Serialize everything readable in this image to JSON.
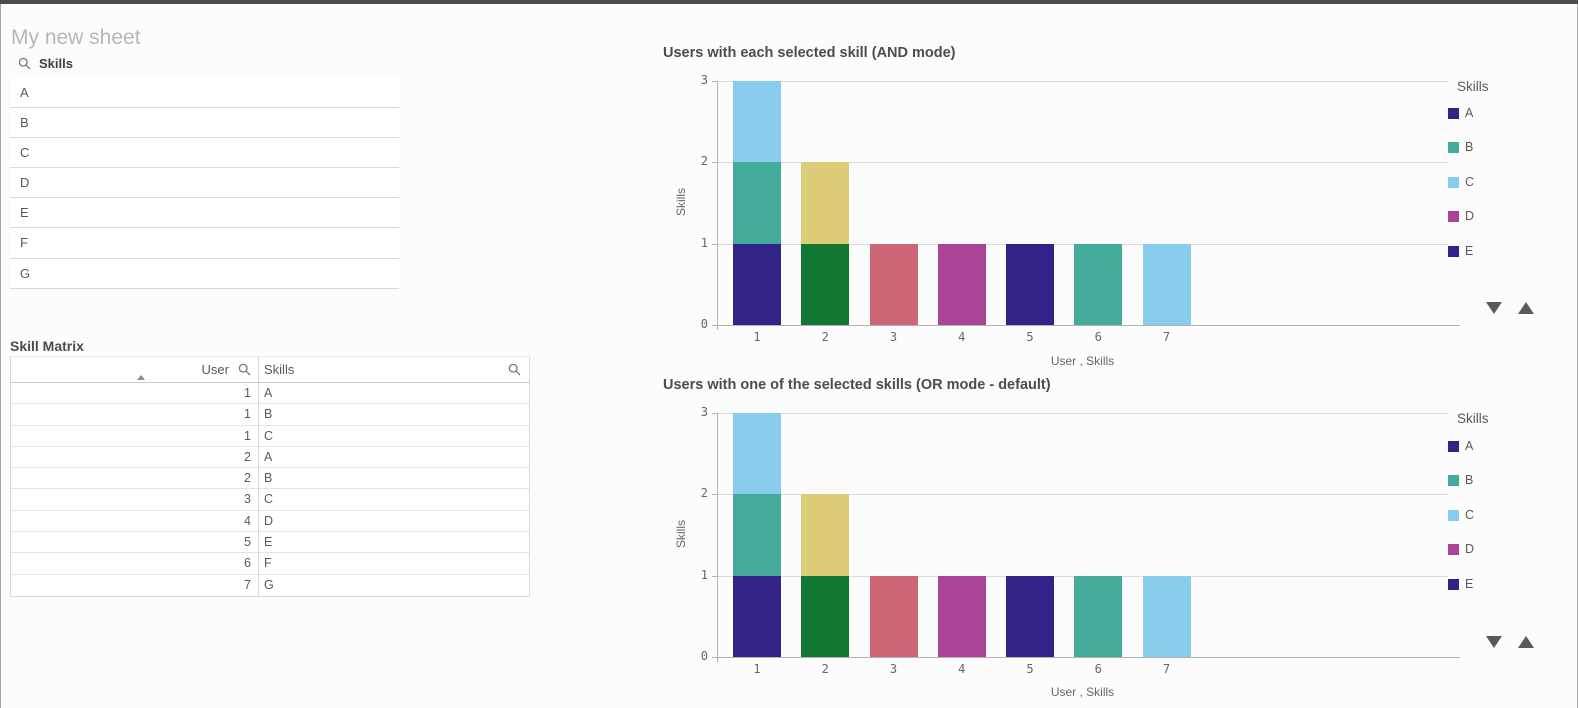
{
  "sheet": {
    "title": "My new sheet"
  },
  "filter_pane": {
    "title": "Skills",
    "items": [
      "A",
      "B",
      "C",
      "D",
      "E",
      "F",
      "G"
    ]
  },
  "skill_matrix": {
    "title": "Skill Matrix",
    "columns": [
      {
        "label": "User",
        "align": "right",
        "sorted": "ascending"
      },
      {
        "label": "Skills",
        "align": "left"
      }
    ],
    "rows": [
      {
        "user": "1",
        "skill": "A"
      },
      {
        "user": "1",
        "skill": "B"
      },
      {
        "user": "1",
        "skill": "C"
      },
      {
        "user": "2",
        "skill": "A"
      },
      {
        "user": "2",
        "skill": "B"
      },
      {
        "user": "3",
        "skill": "C"
      },
      {
        "user": "4",
        "skill": "D"
      },
      {
        "user": "5",
        "skill": "E"
      },
      {
        "user": "6",
        "skill": "F"
      },
      {
        "user": "7",
        "skill": "G"
      }
    ]
  },
  "legend": {
    "title": "Skills",
    "entries": [
      {
        "label": "A",
        "color": "#332288"
      },
      {
        "label": "B",
        "color": "#44AA99"
      },
      {
        "label": "C",
        "color": "#88CCEE"
      },
      {
        "label": "D",
        "color": "#AA4499"
      },
      {
        "label": "E",
        "color": "#332288"
      }
    ]
  },
  "chart_data": [
    {
      "type": "bar",
      "stacked": true,
      "title": "Users with each selected skill (AND mode)",
      "xlabel": "User , Skills",
      "ylabel": "Skills",
      "ylim": [
        0,
        3
      ],
      "yticks": [
        0,
        1,
        2,
        3
      ],
      "grid": true,
      "legend_position": "right",
      "categories": [
        "1",
        "2",
        "3",
        "4",
        "5",
        "6",
        "7"
      ],
      "totals": [
        3,
        2,
        1,
        1,
        1,
        1,
        1
      ],
      "bars": [
        {
          "category": "1",
          "segments": [
            {
              "value": 1,
              "color": "#332288"
            },
            {
              "value": 1,
              "color": "#44AA99"
            },
            {
              "value": 1,
              "color": "#88CCEE"
            }
          ]
        },
        {
          "category": "2",
          "segments": [
            {
              "value": 1,
              "color": "#117733"
            },
            {
              "value": 1,
              "color": "#DDCC77"
            }
          ]
        },
        {
          "category": "3",
          "segments": [
            {
              "value": 1,
              "color": "#CC6677"
            }
          ]
        },
        {
          "category": "4",
          "segments": [
            {
              "value": 1,
              "color": "#AA4499"
            }
          ]
        },
        {
          "category": "5",
          "segments": [
            {
              "value": 1,
              "color": "#332288"
            }
          ]
        },
        {
          "category": "6",
          "segments": [
            {
              "value": 1,
              "color": "#44AA99"
            }
          ]
        },
        {
          "category": "7",
          "segments": [
            {
              "value": 1,
              "color": "#88CCEE"
            }
          ]
        }
      ]
    },
    {
      "type": "bar",
      "stacked": true,
      "title": "Users with one of the selected skills (OR mode - default)",
      "xlabel": "User , Skills",
      "ylabel": "Skills",
      "ylim": [
        0,
        3
      ],
      "yticks": [
        0,
        1,
        2,
        3
      ],
      "grid": true,
      "legend_position": "right",
      "categories": [
        "1",
        "2",
        "3",
        "4",
        "5",
        "6",
        "7"
      ],
      "totals": [
        3,
        2,
        1,
        1,
        1,
        1,
        1
      ],
      "bars": [
        {
          "category": "1",
          "segments": [
            {
              "value": 1,
              "color": "#332288"
            },
            {
              "value": 1,
              "color": "#44AA99"
            },
            {
              "value": 1,
              "color": "#88CCEE"
            }
          ]
        },
        {
          "category": "2",
          "segments": [
            {
              "value": 1,
              "color": "#117733"
            },
            {
              "value": 1,
              "color": "#DDCC77"
            }
          ]
        },
        {
          "category": "3",
          "segments": [
            {
              "value": 1,
              "color": "#CC6677"
            }
          ]
        },
        {
          "category": "4",
          "segments": [
            {
              "value": 1,
              "color": "#AA4499"
            }
          ]
        },
        {
          "category": "5",
          "segments": [
            {
              "value": 1,
              "color": "#332288"
            }
          ]
        },
        {
          "category": "6",
          "segments": [
            {
              "value": 1,
              "color": "#44AA99"
            }
          ]
        },
        {
          "category": "7",
          "segments": [
            {
              "value": 1,
              "color": "#88CCEE"
            }
          ]
        }
      ]
    }
  ],
  "colors": {
    "indigo": "#332288",
    "teal": "#44AA99",
    "light_blue": "#88CCEE",
    "green": "#117733",
    "yellow": "#DDCC77",
    "rose": "#CC6677",
    "magenta": "#AA4499",
    "topbar": "#4c4c4a"
  }
}
